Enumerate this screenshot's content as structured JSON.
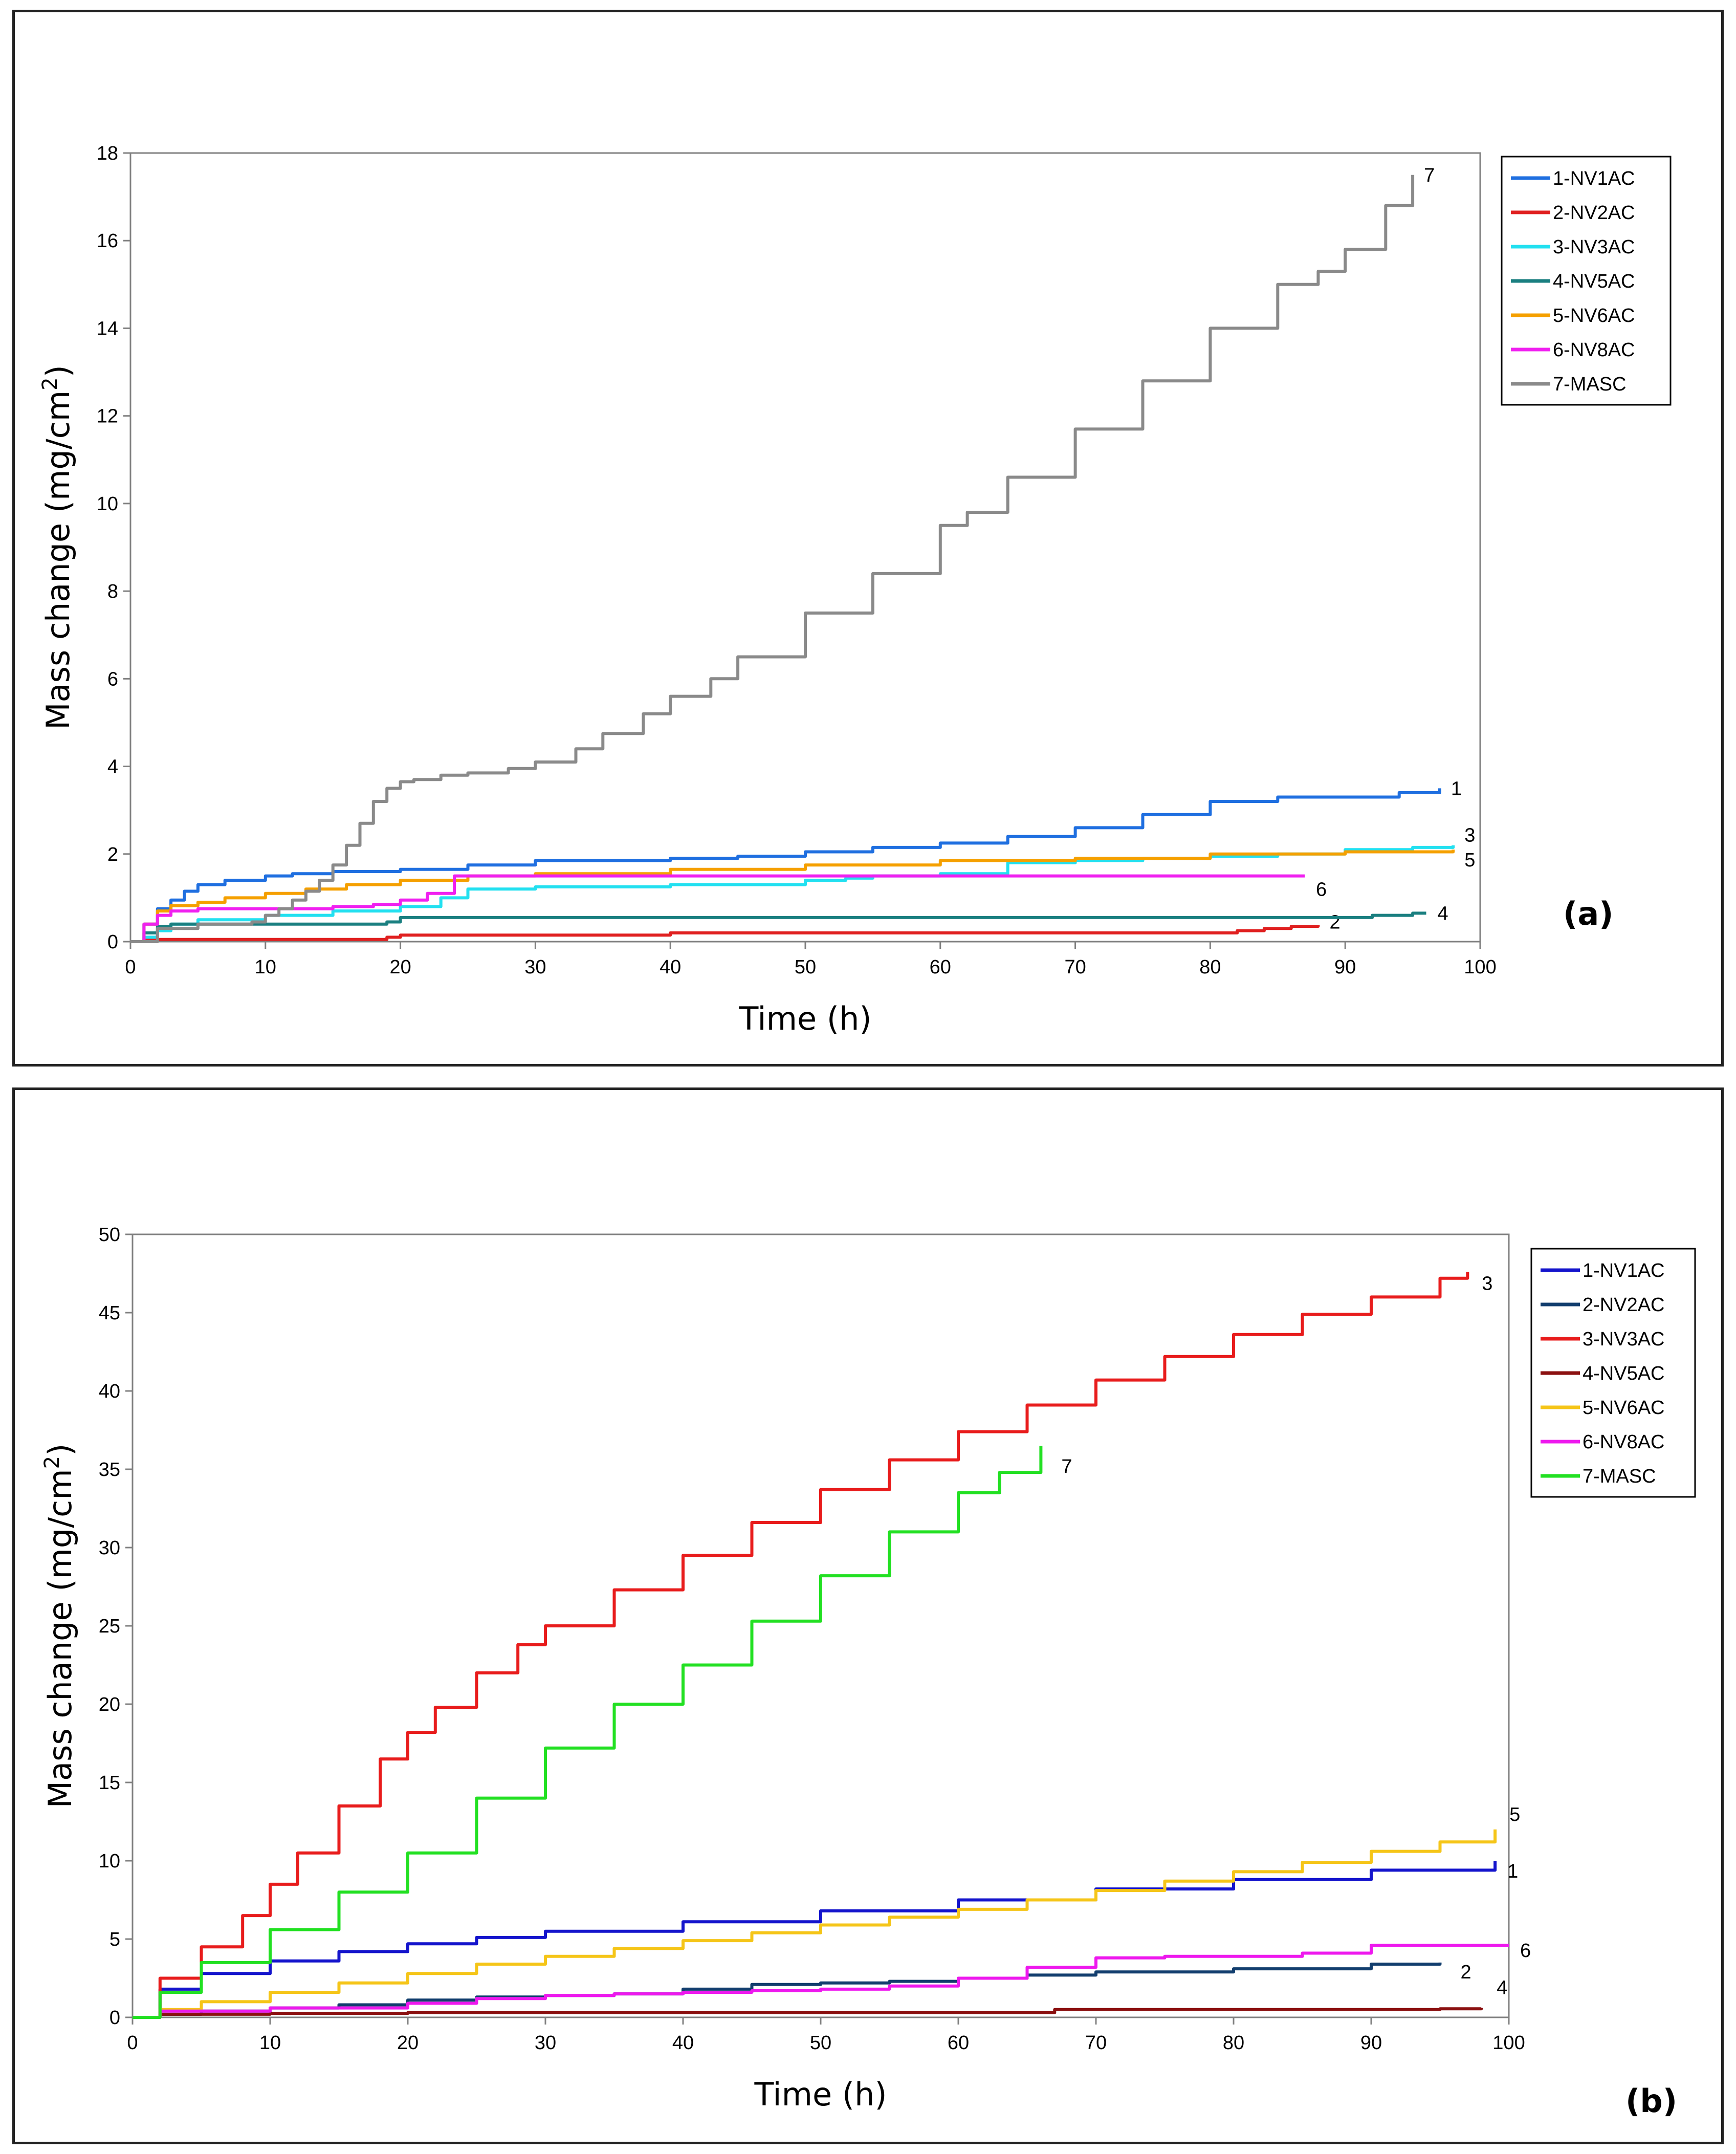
{
  "chart_data": [
    {
      "type": "line",
      "panel_label": "(a)",
      "xlabel": "Time (h)",
      "ylabel": "Mass change (mg/cm",
      "ylabel_sup": "2",
      "ylabel_close": ")",
      "xlim": [
        0,
        100
      ],
      "ylim": [
        0,
        18
      ],
      "xticks": [
        0,
        10,
        20,
        30,
        40,
        50,
        60,
        70,
        80,
        90,
        100
      ],
      "yticks": [
        0,
        2,
        4,
        6,
        8,
        10,
        12,
        14,
        16,
        18
      ],
      "legend_position": "top-right",
      "series": [
        {
          "name": "1-NV1AC",
          "label": "1",
          "color": "#1f6fe0",
          "x": [
            0,
            1,
            2,
            3,
            4,
            5,
            7,
            10,
            12,
            15,
            20,
            25,
            30,
            40,
            45,
            50,
            55,
            60,
            65,
            70,
            75,
            80,
            85,
            90,
            94,
            97
          ],
          "y": [
            0,
            0.4,
            0.75,
            0.95,
            1.15,
            1.3,
            1.4,
            1.5,
            1.55,
            1.6,
            1.65,
            1.75,
            1.85,
            1.9,
            1.95,
            2.05,
            2.15,
            2.25,
            2.4,
            2.6,
            2.9,
            3.2,
            3.3,
            3.3,
            3.4,
            3.5
          ]
        },
        {
          "name": "2-NV2AC",
          "label": "2",
          "color": "#e02020",
          "x": [
            0,
            1,
            2,
            10,
            19,
            20,
            40,
            60,
            80,
            82,
            84,
            86,
            88
          ],
          "y": [
            0,
            0.05,
            0.05,
            0.05,
            0.1,
            0.15,
            0.2,
            0.2,
            0.2,
            0.25,
            0.3,
            0.35,
            0.38
          ]
        },
        {
          "name": "3-NV3AC",
          "label": "3",
          "color": "#22e0f0",
          "x": [
            0,
            1,
            2,
            3,
            5,
            10,
            15,
            20,
            23,
            25,
            30,
            40,
            50,
            53,
            55,
            60,
            65,
            70,
            75,
            80,
            85,
            90,
            95,
            98
          ],
          "y": [
            0,
            0.1,
            0.25,
            0.4,
            0.5,
            0.6,
            0.7,
            0.8,
            1.0,
            1.2,
            1.25,
            1.3,
            1.4,
            1.45,
            1.5,
            1.55,
            1.8,
            1.85,
            1.9,
            1.95,
            2.0,
            2.1,
            2.15,
            2.2
          ]
        },
        {
          "name": "4-NV5AC",
          "label": "4",
          "color": "#1a7f80",
          "x": [
            0,
            1,
            2,
            3,
            10,
            15,
            19,
            20,
            40,
            60,
            80,
            92,
            95,
            96
          ],
          "y": [
            0,
            0.2,
            0.35,
            0.4,
            0.4,
            0.4,
            0.45,
            0.55,
            0.55,
            0.55,
            0.55,
            0.6,
            0.65,
            0.65
          ]
        },
        {
          "name": "5-NV6AC",
          "label": "5",
          "color": "#f5a000",
          "x": [
            0,
            1,
            2,
            3,
            5,
            7,
            10,
            13,
            16,
            20,
            25,
            30,
            40,
            50,
            60,
            70,
            80,
            90,
            98
          ],
          "y": [
            0,
            0.4,
            0.7,
            0.82,
            0.9,
            1.0,
            1.1,
            1.2,
            1.3,
            1.4,
            1.5,
            1.55,
            1.65,
            1.75,
            1.85,
            1.9,
            2.0,
            2.05,
            2.1
          ]
        },
        {
          "name": "6-NV8AC",
          "label": "6",
          "color": "#f020f0",
          "x": [
            0,
            1,
            2,
            3,
            5,
            10,
            15,
            18,
            20,
            22,
            24,
            30,
            40,
            60,
            80,
            87
          ],
          "y": [
            0,
            0.4,
            0.6,
            0.7,
            0.75,
            0.75,
            0.8,
            0.85,
            0.95,
            1.1,
            1.5,
            1.5,
            1.5,
            1.5,
            1.5,
            1.5
          ]
        },
        {
          "name": "7-MASC",
          "label": "7",
          "color": "#8a8a8a",
          "x": [
            0,
            2,
            5,
            9,
            10,
            11,
            12,
            13,
            14,
            15,
            16,
            17,
            18,
            19,
            20,
            21,
            23,
            25,
            28,
            30,
            33,
            35,
            38,
            40,
            43,
            45,
            50,
            55,
            60,
            62,
            65,
            70,
            75,
            80,
            85,
            88,
            90,
            93,
            95
          ],
          "y": [
            0,
            0.3,
            0.4,
            0.45,
            0.6,
            0.75,
            0.95,
            1.15,
            1.4,
            1.75,
            2.2,
            2.7,
            3.2,
            3.5,
            3.65,
            3.7,
            3.8,
            3.85,
            3.95,
            4.1,
            4.4,
            4.75,
            5.2,
            5.6,
            6.0,
            6.5,
            7.5,
            8.4,
            9.5,
            9.8,
            10.6,
            11.7,
            12.8,
            14.0,
            15.0,
            15.3,
            15.8,
            16.8,
            17.5
          ]
        }
      ]
    },
    {
      "type": "line",
      "panel_label": "(b)",
      "xlabel": "Time (h)",
      "ylabel": "Mass change (mg/cm",
      "ylabel_sup": "2",
      "ylabel_close": ")",
      "xlim": [
        0,
        100
      ],
      "ylim": [
        0,
        50
      ],
      "xticks": [
        0,
        10,
        20,
        30,
        40,
        50,
        60,
        70,
        80,
        90,
        100
      ],
      "yticks": [
        0,
        5,
        10,
        15,
        20,
        25,
        30,
        35,
        40,
        45,
        50
      ],
      "legend_position": "top-right",
      "series": [
        {
          "name": "1-NV1AC",
          "label": "1",
          "color": "#1414cc",
          "x": [
            0,
            2,
            5,
            10,
            15,
            20,
            25,
            30,
            40,
            50,
            60,
            70,
            80,
            90,
            99
          ],
          "y": [
            0,
            1.8,
            2.8,
            3.6,
            4.2,
            4.7,
            5.1,
            5.5,
            6.1,
            6.8,
            7.5,
            8.2,
            8.8,
            9.4,
            10.0
          ]
        },
        {
          "name": "2-NV2AC",
          "label": "2",
          "color": "#123e6e",
          "x": [
            0,
            2,
            5,
            10,
            15,
            20,
            25,
            30,
            35,
            40,
            45,
            50,
            55,
            60,
            65,
            70,
            80,
            90,
            95
          ],
          "y": [
            0,
            0.2,
            0.4,
            0.6,
            0.8,
            1.1,
            1.3,
            1.4,
            1.5,
            1.8,
            2.1,
            2.2,
            2.3,
            2.5,
            2.7,
            2.9,
            3.1,
            3.4,
            3.5
          ]
        },
        {
          "name": "3-NV3AC",
          "label": "3",
          "color": "#e81c1c",
          "x": [
            0,
            2,
            5,
            8,
            10,
            12,
            15,
            18,
            20,
            22,
            25,
            28,
            30,
            35,
            40,
            45,
            50,
            55,
            60,
            65,
            70,
            75,
            80,
            85,
            90,
            95,
            97
          ],
          "y": [
            0,
            2.5,
            4.5,
            6.5,
            8.5,
            10.5,
            13.5,
            16.5,
            18.2,
            19.8,
            22.0,
            23.8,
            25.0,
            27.3,
            29.5,
            31.6,
            33.7,
            35.6,
            37.4,
            39.1,
            40.7,
            42.2,
            43.6,
            44.9,
            46.0,
            47.2,
            47.6
          ]
        },
        {
          "name": "4-NV5AC",
          "label": "4",
          "color": "#8b1010",
          "x": [
            0,
            2,
            10,
            20,
            40,
            60,
            66,
            67,
            80,
            95,
            98
          ],
          "y": [
            0,
            0.2,
            0.25,
            0.3,
            0.3,
            0.3,
            0.3,
            0.5,
            0.5,
            0.55,
            0.6
          ]
        },
        {
          "name": "5-NV6AC",
          "label": "5",
          "color": "#f5c518",
          "x": [
            0,
            2,
            5,
            10,
            15,
            20,
            25,
            30,
            35,
            40,
            45,
            50,
            55,
            60,
            65,
            70,
            75,
            80,
            85,
            90,
            95,
            99
          ],
          "y": [
            0,
            0.5,
            1.0,
            1.6,
            2.2,
            2.8,
            3.4,
            3.9,
            4.4,
            4.9,
            5.4,
            5.9,
            6.4,
            6.9,
            7.5,
            8.1,
            8.7,
            9.3,
            9.9,
            10.6,
            11.2,
            12.0
          ]
        },
        {
          "name": "6-NV8AC",
          "label": "6",
          "color": "#ee18ee",
          "x": [
            0,
            2,
            10,
            20,
            25,
            30,
            35,
            40,
            45,
            50,
            55,
            60,
            65,
            70,
            75,
            80,
            85,
            90,
            95,
            100
          ],
          "y": [
            0,
            0.4,
            0.6,
            0.9,
            1.2,
            1.4,
            1.5,
            1.6,
            1.7,
            1.8,
            2.0,
            2.5,
            3.2,
            3.8,
            3.9,
            3.9,
            4.1,
            4.6,
            4.6,
            4.6
          ]
        },
        {
          "name": "7-MASC",
          "label": "7",
          "color": "#22e022",
          "x": [
            0,
            2,
            5,
            10,
            15,
            20,
            25,
            30,
            35,
            40,
            45,
            50,
            55,
            60,
            63,
            66
          ],
          "y": [
            0,
            1.6,
            3.5,
            5.6,
            8.0,
            10.5,
            14.0,
            17.2,
            20.0,
            22.5,
            25.3,
            28.2,
            31.0,
            33.5,
            34.8,
            36.5
          ]
        }
      ]
    }
  ]
}
